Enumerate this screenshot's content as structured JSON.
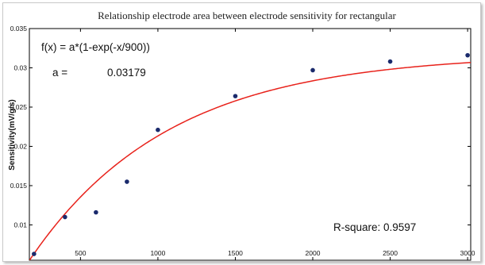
{
  "chart_data": {
    "type": "scatter",
    "title": "Relationship electrode area between electrode sensitivity for rectangular",
    "xlabel": "",
    "ylabel": "Sensitivity(mV/g/s)",
    "xlim": [
      170,
      3020
    ],
    "ylim": [
      0.0055,
      0.035
    ],
    "x_ticks": [
      500,
      1000,
      1500,
      2000,
      2500,
      3000
    ],
    "x_tick_labels": [
      "500",
      "1000",
      "1500",
      "2000",
      "2500",
      "3000"
    ],
    "y_ticks": [
      0.01,
      0.015,
      0.02,
      0.025,
      0.03,
      0.035
    ],
    "y_tick_labels": [
      "0.01",
      "0.015",
      "0.02",
      "0.025",
      "0.03",
      "0.035"
    ],
    "grid": false,
    "series": [
      {
        "type": "scatter",
        "color": "#1a2a6c",
        "x": [
          200,
          400,
          600,
          800,
          1000,
          1500,
          2000,
          2500,
          3000
        ],
        "y": [
          0.0063,
          0.011,
          0.0116,
          0.0155,
          0.0221,
          0.0264,
          0.0297,
          0.0308,
          0.0316
        ]
      },
      {
        "type": "line",
        "color": "#e8221b",
        "fit": {
          "model": "a*(1-exp(-x/900))",
          "a": 0.03179,
          "tau": 900
        }
      }
    ],
    "annotations": {
      "equation": "f(x) = a*(1-exp(-x/900))",
      "param_label": "a =",
      "param_value": "0.03179",
      "r_square": "R-square: 0.9597"
    }
  }
}
